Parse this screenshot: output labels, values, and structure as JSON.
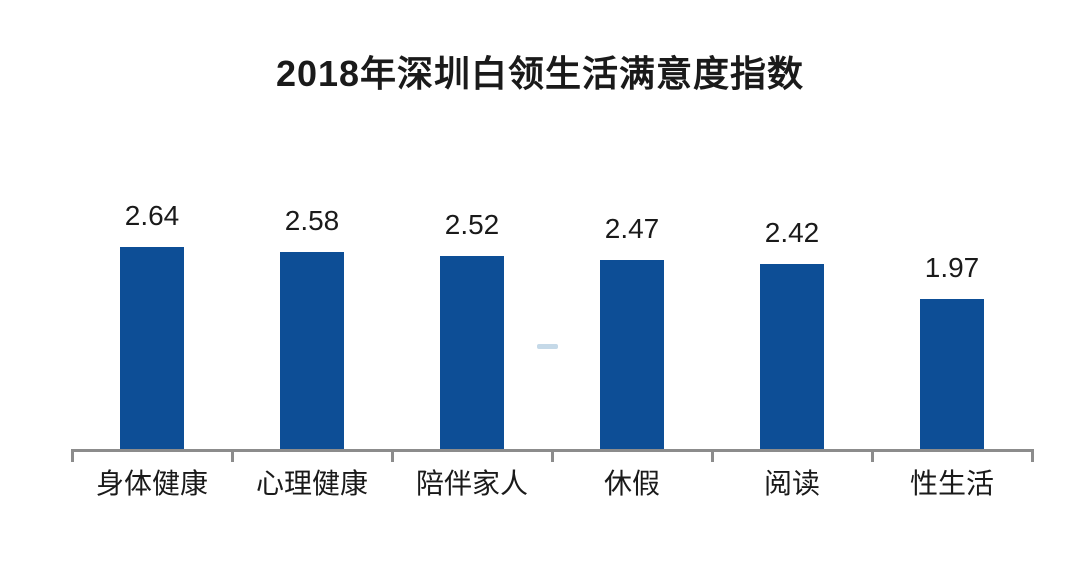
{
  "chart_data": {
    "type": "bar",
    "title": "2018年深圳白领生活满意度指数",
    "categories": [
      "身体健康",
      "心理健康",
      "陪伴家人",
      "休假",
      "阅读",
      "性生活"
    ],
    "values": [
      2.64,
      2.58,
      2.52,
      2.47,
      2.42,
      1.97
    ],
    "value_labels": [
      "2.64",
      "2.58",
      "2.52",
      "2.47",
      "2.42",
      "1.97"
    ],
    "xlabel": "",
    "ylabel": "",
    "ylim": [
      0,
      3
    ],
    "grid": false,
    "legend": "none",
    "bar_color": "#0d4e96",
    "axis_color": "#8c8c8c",
    "text_color": "#1a1a1a",
    "background_color": "#ffffff",
    "watermark_dash_color": "#b6cfe2"
  }
}
